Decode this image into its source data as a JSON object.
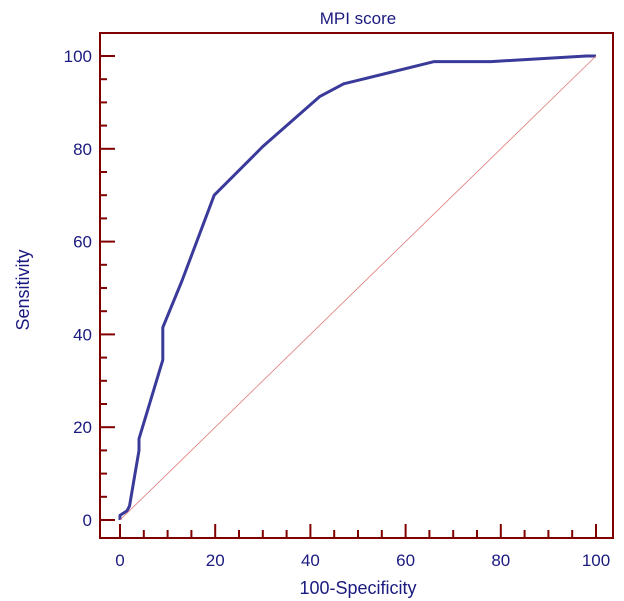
{
  "chart_data": {
    "type": "line",
    "title": "MPI score",
    "xlabel": "100-Specificity",
    "ylabel": "Sensitivity",
    "xlim": [
      0,
      100
    ],
    "ylim": [
      0,
      100
    ],
    "xticks": [
      0,
      20,
      40,
      60,
      80,
      100
    ],
    "yticks": [
      0,
      20,
      40,
      60,
      80,
      100
    ],
    "grid": false,
    "series": [
      {
        "name": "",
        "kind": "roc-curve",
        "x": [
          0,
          0,
          1.5,
          2.0,
          4.0,
          4.0,
          9.0,
          9.0,
          13.0,
          19.8,
          30.0,
          42.0,
          47.0,
          66.0,
          78.0,
          98.0,
          100
        ],
        "y": [
          0,
          1.0,
          2.0,
          3.0,
          15.0,
          17.5,
          34.5,
          41.5,
          51.5,
          70.0,
          80.5,
          91.3,
          94.0,
          98.8,
          98.8,
          100,
          100
        ]
      },
      {
        "name": "",
        "kind": "reference-diagonal",
        "x": [
          0,
          100
        ],
        "y": [
          0,
          100
        ]
      }
    ],
    "colors": {
      "curve": "#3a3a9a",
      "diagonal": "#e07a7a",
      "axes": "#800000",
      "text": "#1a1a80"
    }
  }
}
